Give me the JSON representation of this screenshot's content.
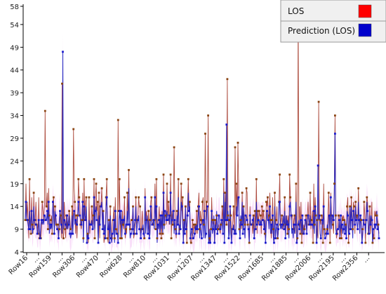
{
  "chart_data": {
    "type": "line",
    "y_ticks": [
      4,
      9,
      14,
      19,
      24,
      29,
      34,
      39,
      44,
      49,
      54,
      58
    ],
    "ylim": [
      4,
      58
    ],
    "x_labels": [
      "Row16",
      "Row159",
      "Row306",
      "Row470",
      "Row628",
      "Row810",
      "Row1031",
      "Row1207",
      "Row1347",
      "Row1522",
      "Row1685",
      "Row1885",
      "Row2006",
      "Row2195",
      "Row2356"
    ],
    "x_ellipsis": "...",
    "n_points": 500,
    "grid": false,
    "legend_position": "top-right",
    "series": [
      {
        "name": "LOS",
        "color": "#ff0000",
        "line_color": "#a03020",
        "marker_color": "#8b4513"
      },
      {
        "name": "Prediction (LOS)",
        "color": "#0000cc",
        "line_color": "#2020c0",
        "marker_color": "#1a1acc"
      }
    ],
    "band_color": "#f2b8f2",
    "peaks": [
      {
        "series": 0,
        "index": 28,
        "value": 35
      },
      {
        "series": 0,
        "index": 52,
        "value": 41
      },
      {
        "series": 1,
        "index": 53,
        "value": 48
      },
      {
        "series": 0,
        "index": 68,
        "value": 31
      },
      {
        "series": 0,
        "index": 131,
        "value": 33
      },
      {
        "series": 0,
        "index": 210,
        "value": 27
      },
      {
        "series": 0,
        "index": 254,
        "value": 30
      },
      {
        "series": 0,
        "index": 258,
        "value": 34
      },
      {
        "series": 0,
        "index": 285,
        "value": 42
      },
      {
        "series": 1,
        "index": 284,
        "value": 32
      },
      {
        "series": 0,
        "index": 296,
        "value": 27
      },
      {
        "series": 0,
        "index": 300,
        "value": 28
      },
      {
        "series": 0,
        "index": 385,
        "value": 58
      },
      {
        "series": 0,
        "index": 414,
        "value": 37
      },
      {
        "series": 1,
        "index": 413,
        "value": 23
      },
      {
        "series": 0,
        "index": 437,
        "value": 34
      },
      {
        "series": 1,
        "index": 437,
        "value": 30
      }
    ]
  }
}
